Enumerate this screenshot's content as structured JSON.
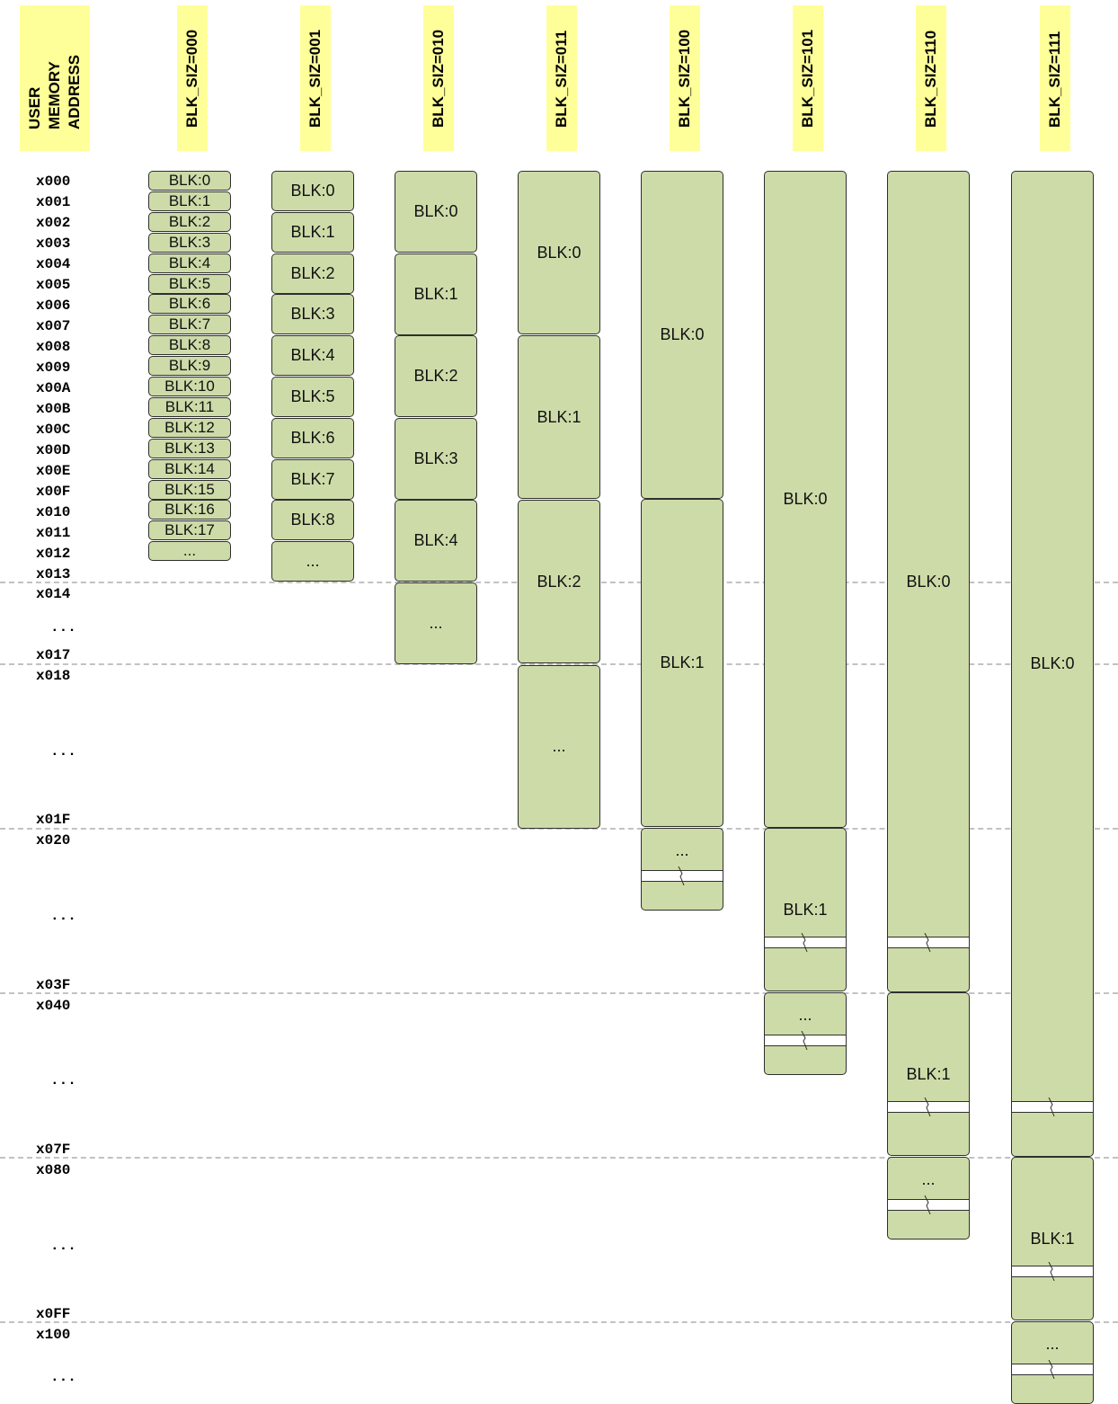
{
  "header": {
    "address_lines": [
      "USER",
      "MEMORY",
      "ADDRESS"
    ],
    "columns": [
      "BLK_SIZ=000",
      "BLK_SIZ=001",
      "BLK_SIZ=010",
      "BLK_SIZ=011",
      "BLK_SIZ=100",
      "BLK_SIZ=101",
      "BLK_SIZ=110",
      "BLK_SIZ=111"
    ]
  },
  "addresses": [
    "x000",
    "x001",
    "x002",
    "x003",
    "x004",
    "x005",
    "x006",
    "x007",
    "x008",
    "x009",
    "x00A",
    "x00B",
    "x00C",
    "x00D",
    "x00E",
    "x00F",
    "x010",
    "x011",
    "x012",
    "x013",
    "x014",
    "...",
    "x017",
    "x018",
    "...",
    "x01F",
    "x020",
    "...",
    "x03F",
    "x040",
    "...",
    "x07F",
    "x080",
    "...",
    "x0FF",
    "x100",
    "..."
  ],
  "columns": [
    {
      "blocks": [
        "BLK:0",
        "BLK:1",
        "BLK:2",
        "BLK:3",
        "BLK:4",
        "BLK:5",
        "BLK:6",
        "BLK:7",
        "BLK:8",
        "BLK:9",
        "BLK:10",
        "BLK:11",
        "BLK:12",
        "BLK:13",
        "BLK:14",
        "BLK:15",
        "BLK:16",
        "BLK:17",
        "..."
      ]
    },
    {
      "blocks": [
        "BLK:0",
        "BLK:1",
        "BLK:2",
        "BLK:3",
        "BLK:4",
        "BLK:5",
        "BLK:6",
        "BLK:7",
        "BLK:8",
        "..."
      ]
    },
    {
      "blocks": [
        "BLK:0",
        "BLK:1",
        "BLK:2",
        "BLK:3",
        "BLK:4",
        "..."
      ]
    },
    {
      "blocks": [
        "BLK:0",
        "BLK:1",
        "BLK:2",
        "..."
      ]
    },
    {
      "blocks": [
        "BLK:0",
        "BLK:1",
        "..."
      ]
    },
    {
      "blocks": [
        "BLK:0",
        "BLK:1",
        "..."
      ]
    },
    {
      "blocks": [
        "BLK:0",
        "BLK:1",
        "..."
      ]
    },
    {
      "blocks": [
        "BLK:0",
        "BLK:1",
        "..."
      ]
    }
  ],
  "colors": {
    "header_bg": "#ffff99",
    "block_fill": "#cddba8",
    "block_border": "#2f2f2f",
    "separator": "#c2c2c2"
  }
}
